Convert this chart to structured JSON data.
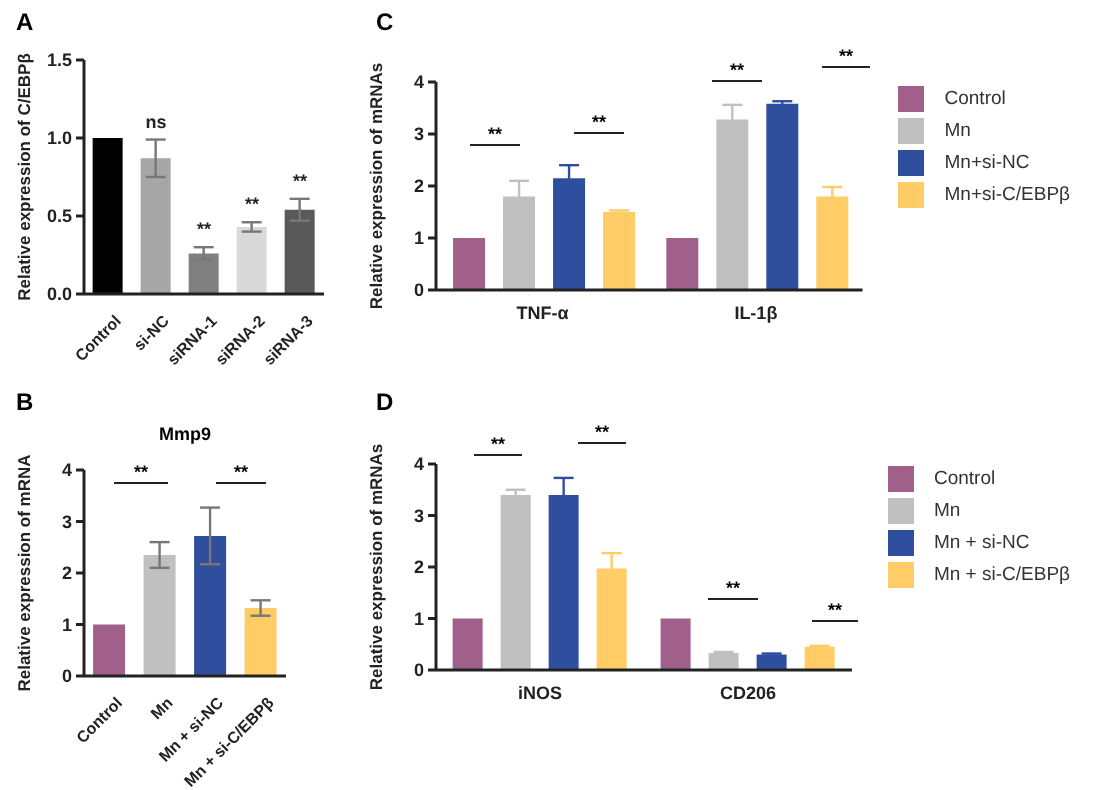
{
  "chart_data": [
    {
      "type": "bar",
      "ylabel": "Relative expression of C/EBPβ",
      "categories": [
        "Control",
        "si-NC",
        "siRNA-1",
        "siRNA-2",
        "siRNA-3"
      ],
      "values": [
        1.0,
        0.87,
        0.26,
        0.43,
        0.54
      ],
      "errors": [
        null,
        0.12,
        0.04,
        0.03,
        0.07
      ],
      "colors": [
        "#000000",
        "#a6a6a6",
        "#808080",
        "#d9d9d9",
        "#595959"
      ],
      "ylim": [
        0,
        1.5
      ],
      "yticks": [
        {
          "value": 0,
          "label": "0.0"
        },
        {
          "value": 0.5,
          "label": "0.5"
        },
        {
          "value": 1,
          "label": "1.0"
        },
        {
          "value": 1.5,
          "label": "1.5"
        }
      ],
      "annotations": [
        "A",
        "ns",
        "**",
        "**",
        "**"
      ]
    },
    {
      "type": "bar",
      "title": "Mmp9",
      "ylabel": "Relative expression of mRNA",
      "categories": [
        "Control",
        "Mn",
        "Mn + si-NC",
        "Mn + si-C/EBPβ"
      ],
      "values": [
        1.0,
        2.35,
        2.72,
        1.32
      ],
      "errors": [
        null,
        0.25,
        0.55,
        0.15
      ],
      "colors": [
        "#a0608a",
        "#c0c0c0",
        "#2f4f9e",
        "#ffcc66"
      ],
      "ylim": [
        0,
        4
      ],
      "yticks": [
        0,
        1,
        2,
        3,
        4
      ],
      "annotations": [
        "B",
        "**",
        "**"
      ]
    },
    {
      "type": "bar",
      "ylabel": "Relative expression of mRNAs",
      "categories": [
        "TNF-α",
        "IL-1β"
      ],
      "legend": "right",
      "ylim": [
        0,
        4
      ],
      "yticks": [
        0,
        1,
        2,
        3,
        4
      ],
      "series": [
        {
          "name": "Control",
          "color": "#a0608a",
          "values": [
            1.0,
            1.0
          ]
        },
        {
          "name": "Mn",
          "color": "#c0c0c0",
          "values": [
            1.8,
            3.28
          ],
          "errors": [
            0.3,
            0.28
          ]
        },
        {
          "name": "Mn+si-NC",
          "color": "#2f4f9e",
          "values": [
            2.15,
            3.58
          ],
          "errors": [
            0.25,
            0.05
          ]
        },
        {
          "name": "Mn+si-C/EBPβ",
          "color": "#ffcc66",
          "values": [
            1.5,
            1.8
          ],
          "errors": [
            0.03,
            0.18
          ]
        }
      ],
      "annotations": [
        "C",
        "**",
        "**",
        "**",
        "**"
      ]
    },
    {
      "type": "bar",
      "ylabel": "Relative expression of mRNAs",
      "categories": [
        "iNOS",
        "CD206"
      ],
      "legend": "right",
      "ylim": [
        0,
        4
      ],
      "yticks": [
        0,
        1,
        2,
        3,
        4
      ],
      "series": [
        {
          "name": "Control",
          "color": "#a0608a",
          "values": [
            1.0,
            1.0
          ]
        },
        {
          "name": "Mn",
          "color": "#c0c0c0",
          "values": [
            3.4,
            0.33
          ],
          "errors": [
            0.1,
            0.02
          ]
        },
        {
          "name": "Mn + si-NC",
          "color": "#2f4f9e",
          "values": [
            3.4,
            0.3
          ],
          "errors": [
            0.33,
            0.02
          ]
        },
        {
          "name": "Mn + si-C/EBPβ",
          "color": "#ffcc66",
          "values": [
            1.97,
            0.45
          ],
          "errors": [
            0.3,
            0.02
          ]
        }
      ],
      "annotations": [
        "D",
        "**",
        "**",
        "**",
        "**"
      ]
    }
  ]
}
